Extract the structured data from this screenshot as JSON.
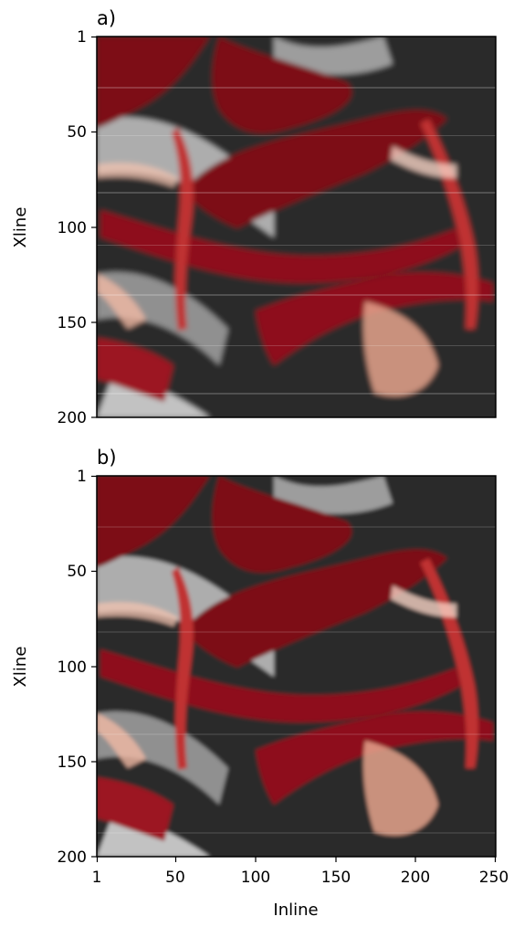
{
  "chart_data": [
    {
      "type": "heatmap",
      "panel_label": "a)",
      "xlabel": "",
      "ylabel": "Xline",
      "xlim": [
        1,
        250
      ],
      "ylim": [
        200,
        1
      ],
      "x_ticks": [],
      "y_ticks": [
        1,
        50,
        100,
        150,
        200
      ],
      "x_tick_labels": [],
      "y_tick_labels": [
        "1",
        "50",
        "100",
        "150",
        "200"
      ],
      "colormap": "red-white-black (seismic amplitude)",
      "colors": [
        "#6b0010",
        "#c0392b",
        "#f4c6b2",
        "#ffffff",
        "#9e9e9e",
        "#1c1c1c"
      ],
      "grid": false
    },
    {
      "type": "heatmap",
      "panel_label": "b)",
      "xlabel": "Inline",
      "ylabel": "Xline",
      "xlim": [
        1,
        250
      ],
      "ylim": [
        200,
        1
      ],
      "x_ticks": [
        1,
        50,
        100,
        150,
        200,
        250
      ],
      "y_ticks": [
        1,
        50,
        100,
        150,
        200
      ],
      "x_tick_labels": [
        "1",
        "50",
        "100",
        "150",
        "200",
        "250"
      ],
      "y_tick_labels": [
        "1",
        "50",
        "100",
        "150",
        "200"
      ],
      "colormap": "red-white-black (seismic amplitude)",
      "colors": [
        "#6b0010",
        "#c0392b",
        "#f4c6b2",
        "#ffffff",
        "#9e9e9e",
        "#1c1c1c"
      ],
      "grid": false
    }
  ]
}
